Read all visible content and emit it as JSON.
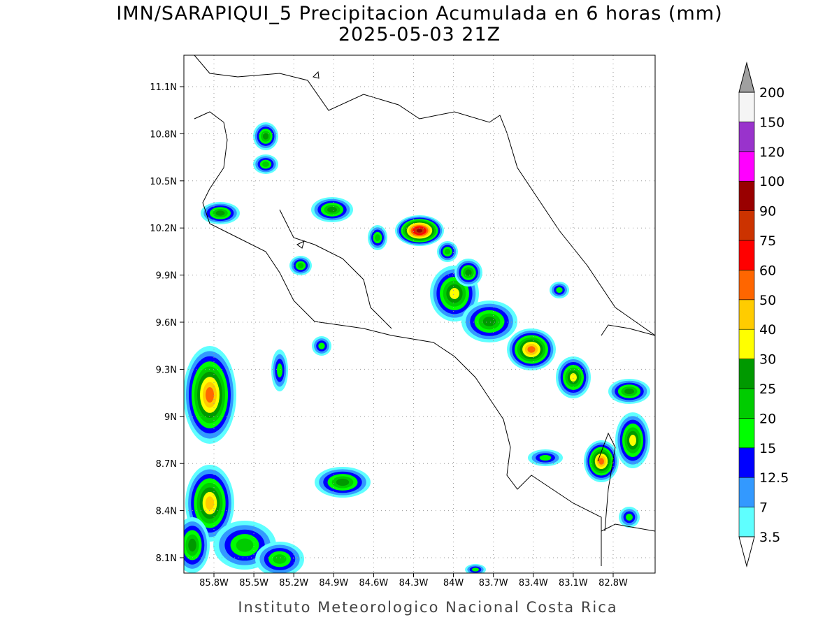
{
  "header": {
    "title": "IMN/SARAPIQUI_5 Precipitacion Acumulada en 6 horas (mm)",
    "subtitle": "2025-05-03 21Z"
  },
  "map": {
    "lon_ticks": [
      "85.8W",
      "85.5W",
      "85.2W",
      "84.9W",
      "84.6W",
      "84.3W",
      "84W",
      "83.7W",
      "83.4W",
      "83.1W",
      "82.8W"
    ],
    "lat_ticks": [
      "11.1N",
      "10.8N",
      "10.5N",
      "10.2N",
      "9.9N",
      "9.6N",
      "9.3N",
      "9N",
      "8.7N",
      "8.4N",
      "8.1N"
    ]
  },
  "colorbar": {
    "levels": [
      3.5,
      7,
      12.5,
      15,
      20,
      25,
      30,
      40,
      50,
      60,
      75,
      90,
      100,
      120,
      150,
      200
    ],
    "colors": [
      "#5fffff",
      "#3399ff",
      "#0000ff",
      "#00ff00",
      "#00cc00",
      "#009900",
      "#ffff00",
      "#ffcc00",
      "#ff6600",
      "#ff0000",
      "#cc3300",
      "#990000",
      "#ff00ff",
      "#9933cc",
      "#f5f5f5"
    ],
    "under_color": "#ffffff",
    "over_color": "#a0a0a0"
  },
  "footer": "Instituto Meteorologico Nacional Costa Rica"
}
